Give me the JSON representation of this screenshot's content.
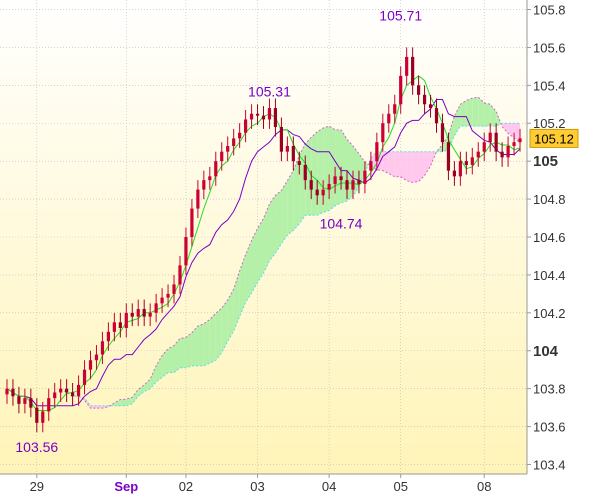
{
  "chart_data": {
    "type": "candlestick",
    "title": "",
    "xlabel": "",
    "ylabel": "",
    "ylim": [
      103.35,
      105.85
    ],
    "y_ticks": [
      "105.8",
      "105.6",
      "105.4",
      "105.2",
      "105",
      "104.8",
      "104.6",
      "104.4",
      "104.2",
      "104",
      "103.8",
      "103.6",
      "103.4"
    ],
    "y_tick_values": [
      105.8,
      105.6,
      105.4,
      105.2,
      105.0,
      104.8,
      104.6,
      104.4,
      104.2,
      104.0,
      103.8,
      103.6,
      103.4
    ],
    "bold_ticks": [
      "105",
      "104"
    ],
    "x_ticks": [
      {
        "label": "29",
        "bold": false,
        "i": 5
      },
      {
        "label": "Sep",
        "bold": true,
        "i": 20
      },
      {
        "label": "02",
        "bold": false,
        "i": 30
      },
      {
        "label": "03",
        "bold": false,
        "i": 42
      },
      {
        "label": "04",
        "bold": false,
        "i": 54
      },
      {
        "label": "05",
        "bold": false,
        "i": 66
      },
      {
        "label": "08",
        "bold": false,
        "i": 80
      }
    ],
    "n_candles": 87,
    "closes": [
      103.8,
      103.76,
      103.72,
      103.75,
      103.7,
      103.62,
      103.68,
      103.75,
      103.78,
      103.8,
      103.78,
      103.76,
      103.82,
      103.9,
      103.95,
      103.98,
      104.05,
      104.1,
      104.15,
      104.12,
      104.2,
      104.18,
      104.22,
      104.18,
      104.2,
      104.25,
      104.28,
      104.3,
      104.35,
      104.45,
      104.6,
      104.75,
      104.85,
      104.9,
      104.92,
      105.0,
      105.05,
      105.08,
      105.12,
      105.15,
      105.22,
      105.25,
      105.24,
      105.22,
      105.28,
      105.18,
      105.05,
      105.08,
      105.0,
      104.98,
      104.9,
      104.85,
      104.82,
      104.85,
      104.88,
      104.92,
      104.9,
      104.85,
      104.9,
      104.88,
      104.95,
      105.0,
      105.1,
      105.2,
      105.25,
      105.3,
      105.45,
      105.55,
      105.4,
      105.35,
      105.3,
      105.28,
      105.2,
      105.1,
      104.95,
      104.92,
      105.0,
      104.98,
      105.02,
      105.05,
      105.1,
      105.15,
      105.05,
      105.02,
      105.08,
      105.1,
      105.12
    ],
    "annotations": [
      {
        "text": "105.71",
        "price": 105.71,
        "i": 66
      },
      {
        "text": "105.31",
        "price": 105.31,
        "i": 44
      },
      {
        "text": "104.74",
        "price": 104.74,
        "i": 56
      },
      {
        "text": "103.56",
        "price": 103.56,
        "i": 5
      }
    ],
    "price_tag": {
      "text": "105.12",
      "value": 105.12
    },
    "ichimoku": {
      "tenkan_color": "#22dd22",
      "kijun_color": "#7a00c8",
      "span_a_color": "#cc66cc",
      "span_b_color": "#55ddee",
      "bull_cloud": "#b4f0a8",
      "bear_cloud": "#ffc8ec"
    },
    "candle_up_color": "#cc0033",
    "candle_down_color": "#990022",
    "label_color": "#7a00c8",
    "background_gradient": [
      "#ffffff",
      "#fff4b8"
    ],
    "grid": true
  }
}
